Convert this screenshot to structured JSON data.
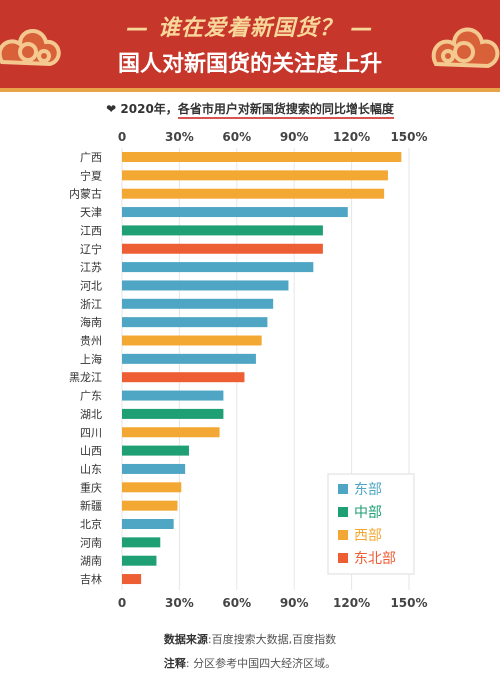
{
  "header": {
    "title_line1": "— 谁在爱着新国货？ —",
    "title_line2": "国人对新国货的关注度上升",
    "subtitle_prefix": "2020年，",
    "subtitle_main": "各省市用户对新国货搜索的同比增长幅度"
  },
  "footer": {
    "source_label": "数据来源",
    "source_text": ":百度搜索大数据,百度指数",
    "note_label": "注释",
    "note_text": ": 分区参考中国四大经济区域。"
  },
  "colors": {
    "东部": "#4fa6c4",
    "中部": "#1f9f74",
    "西部": "#f4a834",
    "东北部": "#ee5e35"
  },
  "chart_data": {
    "type": "bar",
    "orientation": "horizontal",
    "title": "各省市用户对新国货搜索的同比增长幅度",
    "x_ticks": [
      "0",
      "30%",
      "60%",
      "90%",
      "120%",
      "150%"
    ],
    "xlim": [
      0,
      150
    ],
    "legend": [
      "东部",
      "中部",
      "西部",
      "东北部"
    ],
    "legend_position": "bottom-right",
    "categories": [
      "广西",
      "宁夏",
      "内蒙古",
      "天津",
      "江西",
      "辽宁",
      "江苏",
      "河北",
      "浙江",
      "海南",
      "贵州",
      "上海",
      "黑龙江",
      "广东",
      "湖北",
      "四川",
      "山西",
      "山东",
      "重庆",
      "新疆",
      "北京",
      "河南",
      "湖南",
      "吉林"
    ],
    "values": [
      146,
      139,
      137,
      118,
      105,
      105,
      100,
      87,
      79,
      76,
      73,
      70,
      64,
      53,
      53,
      51,
      35,
      33,
      31,
      29,
      27,
      20,
      18,
      10
    ],
    "regions": [
      "西部",
      "西部",
      "西部",
      "东部",
      "中部",
      "东北部",
      "东部",
      "东部",
      "东部",
      "东部",
      "西部",
      "东部",
      "东北部",
      "东部",
      "中部",
      "西部",
      "中部",
      "东部",
      "西部",
      "西部",
      "东部",
      "中部",
      "中部",
      "东北部"
    ]
  }
}
